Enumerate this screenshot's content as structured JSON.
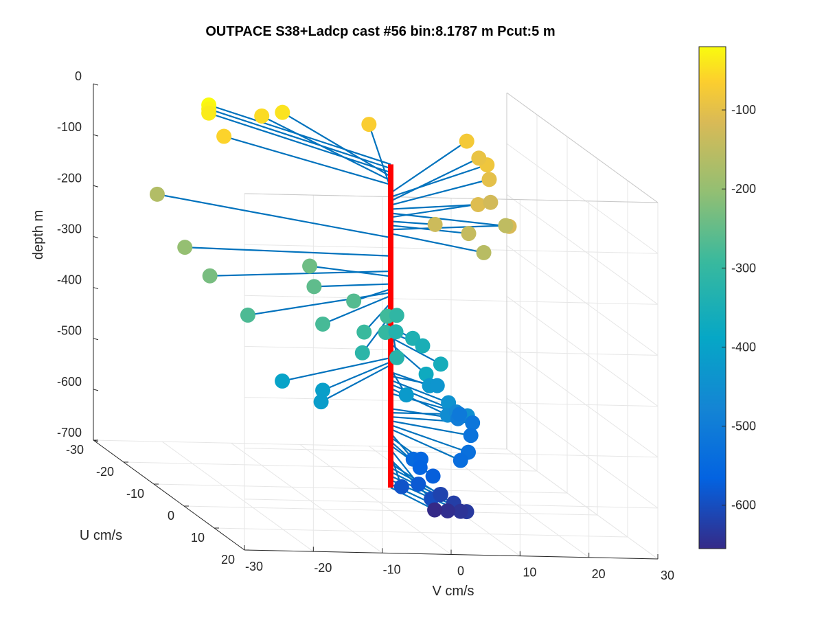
{
  "chart_data": {
    "type": "scatter",
    "subtype": "3d-quiver",
    "title": "OUTPACE S38+Ladcp cast #56 bin:8.1787 m  Pcut:5 m",
    "xlabel": "V cm/s",
    "ylabel": "U cm/s",
    "zlabel": "depth m",
    "xlim": [
      -30,
      30
    ],
    "ylim": [
      -30,
      20
    ],
    "zlim": [
      -700,
      0
    ],
    "xticks": [
      "-30",
      "-20",
      "-10",
      "0",
      "10",
      "20",
      "30"
    ],
    "yticks": [
      "-30",
      "-20",
      "-10",
      "0",
      "10",
      "20"
    ],
    "zticks": [
      "0",
      "-100",
      "-200",
      "-300",
      "-400",
      "-500",
      "-600",
      "-700"
    ],
    "grid": true,
    "colormap": "parula",
    "colorbar": {
      "position": "right",
      "range": [
        -655,
        -20
      ],
      "ticks": [
        "-100",
        "-200",
        "-300",
        "-400",
        "-500",
        "-600"
      ]
    },
    "profile": {
      "color": "#ff0000",
      "depth_range": [
        -655,
        -20
      ],
      "u": 0,
      "v": 0
    },
    "vector_color": "#0072bd",
    "marker": "filled-circle",
    "series": [
      {
        "points": [
          {
            "depth": -20,
            "v": -15,
            "u": -26
          },
          {
            "depth": -28,
            "v": -15,
            "u": -26
          },
          {
            "depth": -36,
            "v": -15,
            "u": -26
          },
          {
            "depth": -44,
            "v": -3,
            "u": -29
          },
          {
            "depth": -52,
            "v": -6,
            "u": -29
          },
          {
            "depth": -60,
            "v": -15,
            "u": -21
          },
          {
            "depth": -68,
            "v": 10,
            "u": -30
          },
          {
            "depth": -76,
            "v": 22,
            "u": -25
          },
          {
            "depth": -84,
            "v": 21,
            "u": -16
          },
          {
            "depth": -92,
            "v": 22,
            "u": -21
          },
          {
            "depth": -100,
            "v": 20,
            "u": -13
          },
          {
            "depth": -108,
            "v": 14,
            "u": -3
          },
          {
            "depth": -116,
            "v": 15,
            "u": 5
          },
          {
            "depth": -124,
            "v": 18,
            "u": -8
          },
          {
            "depth": -132,
            "v": 6,
            "u": 1
          },
          {
            "depth": -140,
            "v": 10,
            "u": 3
          },
          {
            "depth": -148,
            "v": 18,
            "u": -3
          },
          {
            "depth": -156,
            "v": 10,
            "u": 8
          },
          {
            "depth": -164,
            "v": -26,
            "u": -18
          },
          {
            "depth": -200,
            "v": -29,
            "u": -2
          },
          {
            "depth": -230,
            "v": -28,
            "u": 4
          },
          {
            "depth": -240,
            "v": -10,
            "u": -4
          },
          {
            "depth": -255,
            "v": -12,
            "u": 2
          },
          {
            "depth": -265,
            "v": -8,
            "u": 6
          },
          {
            "depth": -272,
            "v": -26,
            "u": 12
          },
          {
            "depth": -278,
            "v": -16,
            "u": 14
          },
          {
            "depth": -285,
            "v": -4,
            "u": 8
          },
          {
            "depth": -292,
            "v": -10,
            "u": 14
          },
          {
            "depth": -300,
            "v": -6,
            "u": 12
          },
          {
            "depth": -308,
            "v": 0,
            "u": 2
          },
          {
            "depth": -316,
            "v": -12,
            "u": 18
          },
          {
            "depth": -324,
            "v": -7,
            "u": 18
          },
          {
            "depth": -332,
            "v": -1,
            "u": 4
          },
          {
            "depth": -340,
            "v": 1,
            "u": 5
          },
          {
            "depth": -350,
            "v": 2,
            "u": 6
          },
          {
            "depth": -360,
            "v": 2,
            "u": 12
          },
          {
            "depth": -372,
            "v": -1,
            "u": 14
          },
          {
            "depth": -400,
            "v": -21,
            "u": 12
          },
          {
            "depth": -408,
            "v": -16,
            "u": 14
          },
          {
            "depth": -414,
            "v": -18,
            "u": 18
          },
          {
            "depth": -422,
            "v": -3,
            "u": 12
          },
          {
            "depth": -428,
            "v": 3,
            "u": 6
          },
          {
            "depth": -436,
            "v": 5,
            "u": 4
          },
          {
            "depth": -444,
            "v": 4,
            "u": 10
          },
          {
            "depth": -452,
            "v": 5,
            "u": 14
          },
          {
            "depth": -460,
            "v": 3,
            "u": 12
          },
          {
            "depth": -470,
            "v": 6,
            "u": 8
          },
          {
            "depth": -500,
            "v": 8,
            "u": 4
          },
          {
            "depth": -508,
            "v": 10,
            "u": 0
          },
          {
            "depth": -516,
            "v": 11,
            "u": 2
          },
          {
            "depth": -524,
            "v": 9,
            "u": 6
          },
          {
            "depth": -532,
            "v": 6,
            "u": 12
          },
          {
            "depth": -540,
            "v": 4,
            "u": 14
          },
          {
            "depth": -548,
            "v": -2,
            "u": 12
          },
          {
            "depth": -556,
            "v": 0,
            "u": 10
          },
          {
            "depth": -564,
            "v": -1,
            "u": 12
          },
          {
            "depth": -572,
            "v": 0,
            "u": 14
          },
          {
            "depth": -580,
            "v": -3,
            "u": 16
          },
          {
            "depth": -590,
            "v": -5,
            "u": 15
          },
          {
            "depth": -600,
            "v": -2,
            "u": 18
          },
          {
            "depth": -608,
            "v": 1,
            "u": 14
          },
          {
            "depth": -616,
            "v": 2,
            "u": 12
          },
          {
            "depth": -624,
            "v": 3,
            "u": 14
          },
          {
            "depth": -632,
            "v": 4,
            "u": 16
          },
          {
            "depth": -640,
            "v": 4,
            "u": 14
          },
          {
            "depth": -648,
            "v": 3,
            "u": 12
          },
          {
            "depth": -655,
            "v": 2,
            "u": 10
          }
        ]
      }
    ]
  }
}
